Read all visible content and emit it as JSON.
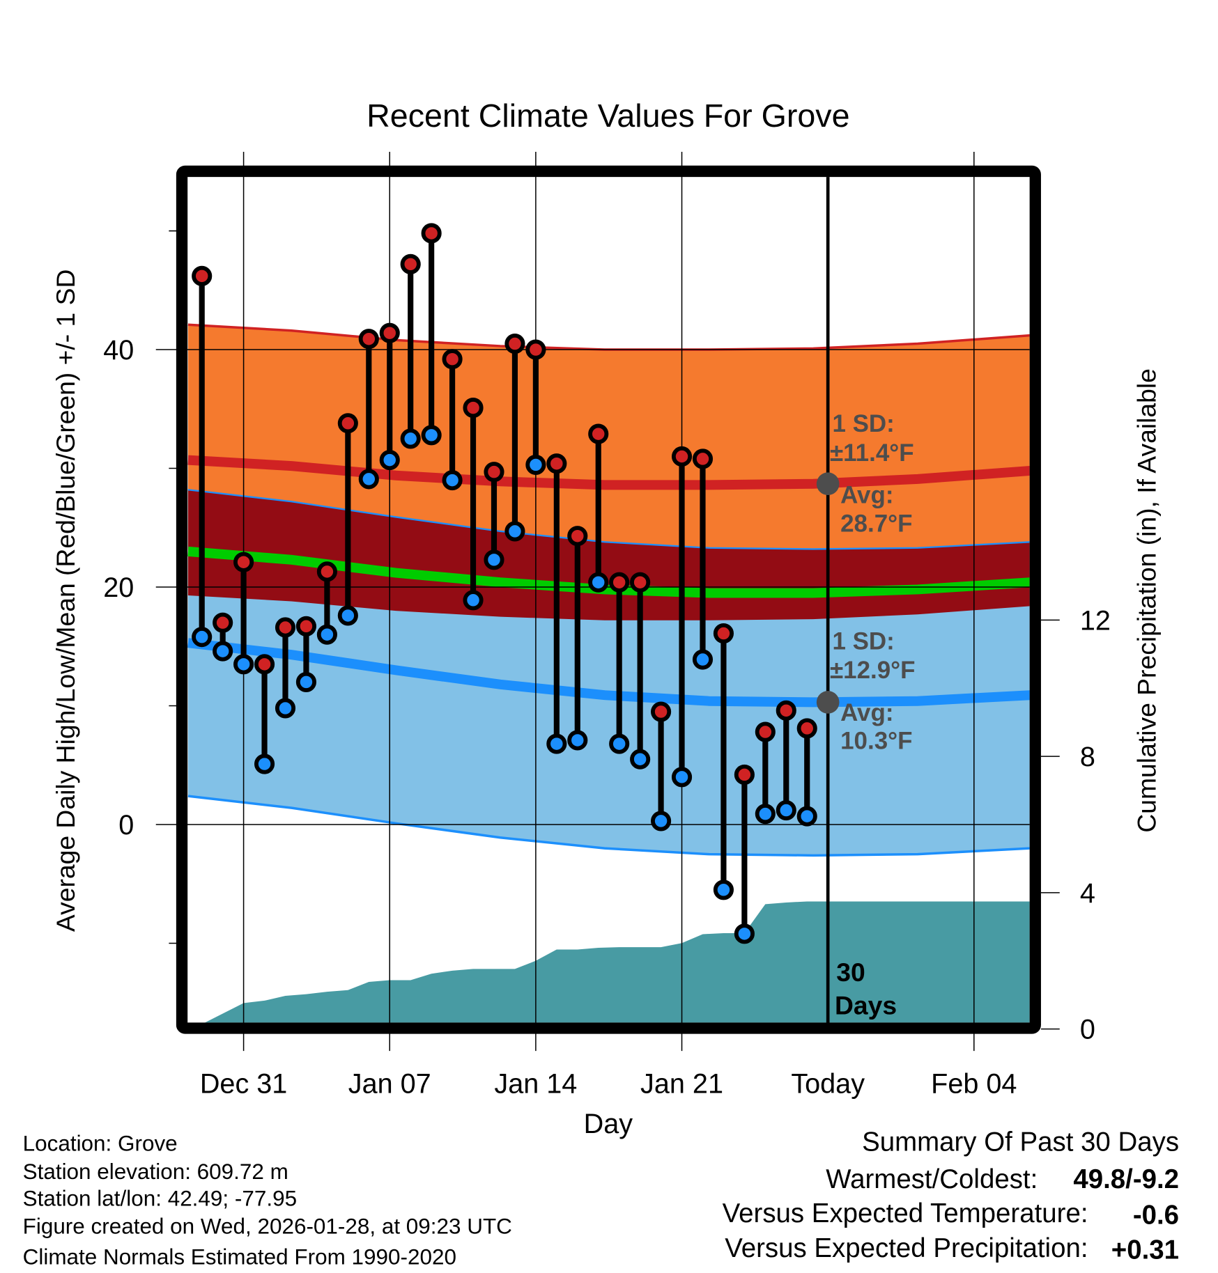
{
  "chart_data": {
    "type": "line",
    "title": "Recent Climate Values For Grove",
    "xlabel": "Day",
    "ylabel": "Average Daily High/Low/Mean (Red/Blue/Green) +/- 1 SD",
    "ylabel_right": "Cumulative Precipitation (in), If Available",
    "ylim": [
      -16.7,
      54.5
    ],
    "ylim_right": [
      0,
      25
    ],
    "xlim_days": [
      -0.66,
      39.7
    ],
    "x_day_origin": "Dec 29",
    "x_ticks": [
      {
        "day": 2,
        "label": "Dec 31"
      },
      {
        "day": 9,
        "label": "Jan 07"
      },
      {
        "day": 16,
        "label": "Jan 14"
      },
      {
        "day": 23,
        "label": "Jan 21"
      },
      {
        "day": 30,
        "label": "Today"
      },
      {
        "day": 37,
        "label": "Feb 04"
      }
    ],
    "y_ticks": [
      {
        "value": 0,
        "label": "0"
      },
      {
        "value": 20,
        "label": "20"
      },
      {
        "value": 40,
        "label": "40"
      }
    ],
    "y_minor_ticks": [
      -10,
      10,
      30,
      50
    ],
    "y_right_ticks": [
      {
        "value": 0,
        "label": "0"
      },
      {
        "value": 4,
        "label": "4"
      },
      {
        "value": 8,
        "label": "8"
      },
      {
        "value": 12,
        "label": "12"
      }
    ],
    "today_day": 30,
    "today_label_1": "30",
    "today_label_2": "Days",
    "highs": [
      46.2,
      17.0,
      22.1,
      13.5,
      16.6,
      16.7,
      21.3,
      33.8,
      40.9,
      41.4,
      47.2,
      49.8,
      39.2,
      35.1,
      29.7,
      40.5,
      40.0,
      30.4,
      24.3,
      32.9,
      20.4,
      20.4,
      9.5,
      31.0,
      30.8,
      16.1,
      4.2,
      7.8,
      9.6,
      8.1
    ],
    "lows": [
      15.8,
      14.6,
      13.5,
      5.1,
      9.8,
      12.0,
      16.0,
      17.6,
      29.1,
      30.7,
      32.5,
      32.8,
      29.0,
      18.9,
      22.3,
      24.7,
      30.3,
      6.8,
      7.1,
      20.4,
      6.8,
      5.5,
      0.3,
      4.0,
      13.9,
      -5.5,
      -9.2,
      0.9,
      1.2,
      0.7
    ],
    "normals": {
      "days": [
        -0.66,
        4.3,
        9.3,
        14.3,
        19.3,
        24.3,
        29.3,
        34.3,
        39.7
      ],
      "mean_high": [
        30.7,
        30.2,
        29.4,
        28.9,
        28.6,
        28.6,
        28.7,
        29.1,
        29.8
      ],
      "mean_low": [
        15.3,
        14.3,
        13.0,
        11.8,
        10.9,
        10.4,
        10.3,
        10.4,
        10.9
      ],
      "mean": [
        23.0,
        22.3,
        21.2,
        20.4,
        19.8,
        19.5,
        19.5,
        19.8,
        20.4
      ],
      "sd_high": 11.4,
      "sd_low": 12.9
    },
    "precip": {
      "days": [
        -0.66,
        0,
        2,
        3,
        4,
        5,
        6,
        7,
        8,
        9,
        10,
        11,
        12,
        13,
        14,
        15,
        16,
        17,
        18,
        19,
        20,
        21,
        22,
        23,
        24,
        25,
        26,
        27,
        28,
        29,
        39.7
      ],
      "values": [
        -0.2,
        0,
        0.62,
        0.69,
        0.83,
        0.88,
        0.95,
        1.0,
        1.24,
        1.29,
        1.29,
        1.48,
        1.57,
        1.62,
        1.62,
        1.62,
        1.86,
        2.19,
        2.19,
        2.24,
        2.26,
        2.26,
        2.26,
        2.38,
        2.64,
        2.67,
        2.67,
        3.52,
        3.57,
        3.6,
        3.6
      ]
    },
    "annotations": {
      "high_sd": "1 SD:",
      "high_sd_val": "±11.4°F",
      "high_avg": "Avg:",
      "high_avg_val": "28.7°F",
      "high_avg_value": 28.7,
      "low_sd": "1 SD:",
      "low_sd_val": "±12.9°F",
      "low_avg": "Avg:",
      "low_avg_val": "10.3°F",
      "low_avg_value": 10.3
    },
    "colors": {
      "high_band": "#f57a2e",
      "overlap": "#930c14",
      "low_band": "#82c1e7",
      "mean": "#00cc00",
      "high_line": "#d02223",
      "low_line": "#1c8ffc",
      "high_dot": "#d02223",
      "low_dot": "#1c8ffc",
      "precip": "#489ba3",
      "label": "#4d4d4d"
    }
  },
  "info": {
    "location": "Location: Grove",
    "elevation": "Station elevation: 609.72 m",
    "latlon": "Station lat/lon: 42.49; -77.95",
    "created": "Figure created on Wed, 2026-01-28, at 09:23 UTC",
    "normals": "Climate Normals Estimated From 1990-2020"
  },
  "summary": {
    "title": "Summary Of Past 30 Days",
    "warm_cold_label": "Warmest/Coldest:",
    "warm_cold_value": "49.8/-9.2",
    "temp_label": "Versus Expected Temperature:",
    "temp_value": "-0.6",
    "precip_label": "Versus Expected Precipitation:",
    "precip_value": "+0.31",
    "temp_color": "#1c8ffc",
    "precip_color": "#1fbf1f"
  }
}
